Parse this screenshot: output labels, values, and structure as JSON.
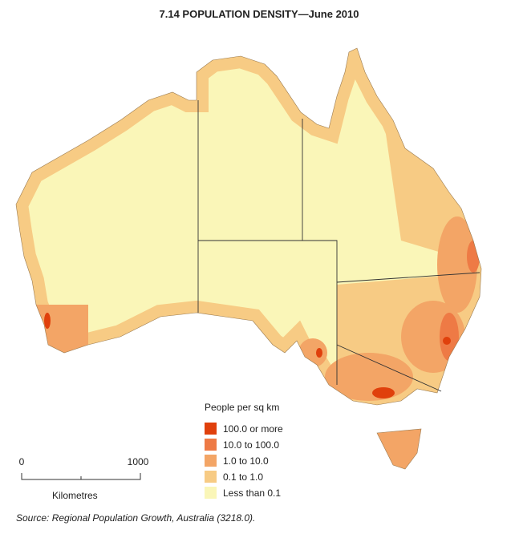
{
  "title": "7.14 POPULATION DENSITY—June 2010",
  "legend": {
    "title": "People per sq km",
    "items": [
      {
        "label": "100.0 or more",
        "color": "#e0400c"
      },
      {
        "label": "10.0 to 100.0",
        "color": "#ee7a45"
      },
      {
        "label": "1.0 to 10.0",
        "color": "#f3a566"
      },
      {
        "label": "0.1 to 1.0",
        "color": "#f7cb84"
      },
      {
        "label": "Less than 0.1",
        "color": "#faf6b8"
      }
    ]
  },
  "scale": {
    "start": "0",
    "end": "1000",
    "unit": "Kilometres"
  },
  "source": "Source: Regional Population Growth, Australia (3218.0)."
}
